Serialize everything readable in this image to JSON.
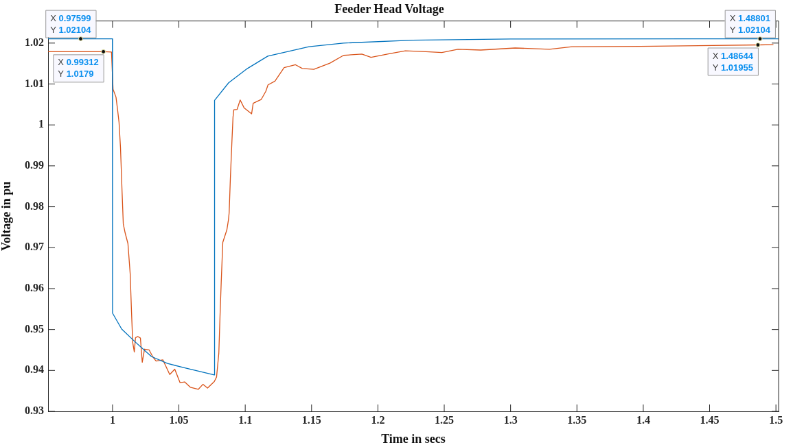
{
  "chart_data": {
    "type": "line",
    "title": "Feeder Head Voltage",
    "xlabel": "Time in secs",
    "ylabel": "Voltage in pu",
    "xlim": [
      0.9514,
      1.502
    ],
    "xticks": [
      1,
      1.05,
      1.1,
      1.15,
      1.2,
      1.25,
      1.3,
      1.35,
      1.4,
      1.45,
      1.5
    ],
    "ylim": [
      0.93,
      1.0254
    ],
    "yticks": [
      0.93,
      0.94,
      0.95,
      0.96,
      0.97,
      0.98,
      0.99,
      1,
      1.01,
      1.02
    ],
    "grid": false,
    "legend": false,
    "marker": "none",
    "line_style": "solid",
    "series": [
      {
        "color": "#0072bd",
        "x": [
          0.9514,
          0.97599,
          0.9999,
          1.0,
          1.0069,
          1.0173,
          1.0293,
          1.0414,
          1.0535,
          1.0767,
          1.0769,
          1.0875,
          1.1017,
          1.117,
          1.148,
          1.174,
          1.226,
          1.3,
          1.48801,
          1.502
        ],
        "values": [
          1.02104,
          1.02104,
          1.02104,
          0.954,
          0.9501,
          0.9469,
          0.9434,
          0.9417,
          0.9407,
          0.9389,
          1.006,
          1.0103,
          1.0138,
          1.0168,
          1.0191,
          1.02,
          1.0207,
          1.021,
          1.02104,
          1.02104
        ]
      },
      {
        "color": "#d95319",
        "x": [
          0.9514,
          0.99312,
          0.9992,
          1.0004,
          1.0026,
          1.0038,
          1.0049,
          1.006,
          1.0072,
          1.0081,
          1.0095,
          1.0116,
          1.0133,
          1.0143,
          1.0152,
          1.0164,
          1.0173,
          1.019,
          1.021,
          1.0224,
          1.0241,
          1.0276,
          1.0302,
          1.0328,
          1.0379,
          1.0431,
          1.0469,
          1.0509,
          1.0543,
          1.0586,
          1.0647,
          1.0681,
          1.0716,
          1.0767,
          1.0784,
          1.0801,
          1.081,
          1.0819,
          1.0831,
          1.0862,
          1.0874,
          1.0879,
          1.0888,
          1.09,
          1.0908,
          1.0914,
          1.0939,
          1.0962,
          1.0991,
          1.1048,
          1.106,
          1.112,
          1.1155,
          1.1172,
          1.1224,
          1.1293,
          1.1379,
          1.143,
          1.1517,
          1.1638,
          1.1741,
          1.1879,
          1.1948,
          1.2086,
          1.2207,
          1.2362,
          1.2482,
          1.2603,
          1.2775,
          1.3034,
          1.3293,
          1.3463,
          1.3981,
          1.48644,
          1.4981
        ],
        "values": [
          1.0179,
          1.0179,
          1.0178,
          1.0087,
          1.0068,
          1.0037,
          1.0006,
          0.9944,
          0.9835,
          0.9758,
          0.9736,
          0.971,
          0.9636,
          0.9543,
          0.9468,
          0.9445,
          0.948,
          0.9483,
          0.9479,
          0.942,
          0.9452,
          0.945,
          0.9434,
          0.9423,
          0.9426,
          0.939,
          0.9403,
          0.937,
          0.9372,
          0.9359,
          0.9354,
          0.9366,
          0.9357,
          0.9373,
          0.9384,
          0.9442,
          0.9532,
          0.9615,
          0.9713,
          0.9744,
          0.9769,
          0.9786,
          0.9869,
          0.9962,
          1.0019,
          1.0037,
          1.0038,
          1.0061,
          1.0042,
          1.0027,
          1.0053,
          1.0062,
          1.0082,
          1.0098,
          1.0107,
          1.014,
          1.0147,
          1.0138,
          1.0136,
          1.0151,
          1.017,
          1.0173,
          1.0165,
          1.0174,
          1.0181,
          1.0179,
          1.0177,
          1.0185,
          1.0183,
          1.0188,
          1.0185,
          1.0191,
          1.0192,
          1.01955,
          1.0196
        ]
      }
    ],
    "annotations": [
      {
        "text": "X 0.97599\nY 1.02104",
        "x": 0.97599,
        "y": 1.02104
      },
      {
        "text": "X 0.99312\nY 1.0179",
        "x": 0.99312,
        "y": 1.0179
      },
      {
        "text": "X 1.48801\nY 1.02104",
        "x": 1.48801,
        "y": 1.02104
      },
      {
        "text": "X 1.48644\nY 1.01955",
        "x": 1.48644,
        "y": 1.01955
      }
    ]
  }
}
